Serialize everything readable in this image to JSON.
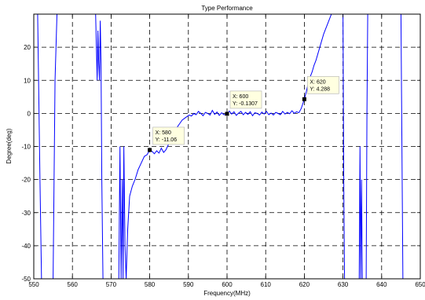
{
  "chart_data": {
    "type": "line",
    "title": "Type Performance",
    "xlabel": "Frequency(MHz)",
    "ylabel": "Degree(deg)",
    "xlim": [
      550,
      650
    ],
    "ylim": [
      -50,
      30
    ],
    "xticks": [
      550,
      560,
      570,
      580,
      590,
      600,
      610,
      620,
      630,
      640,
      650
    ],
    "yticks": [
      -50,
      -40,
      -30,
      -20,
      -10,
      0,
      10,
      20
    ],
    "xtick_labels": [
      "550",
      "560",
      "570",
      "580",
      "590",
      "600",
      "610",
      "620",
      "630",
      "640",
      "650"
    ],
    "ytick_labels": [
      "-50",
      "-40",
      "-30",
      "-20",
      "-10",
      "0",
      "10",
      "20"
    ],
    "grid": "dashed",
    "series": [
      {
        "color": "#0000ff",
        "x": [
          551.0,
          551.3,
          551.6,
          552.0,
          555.0,
          555.5,
          556.0,
          566.0,
          566.2,
          566.4,
          566.6,
          566.8,
          567.0,
          567.2,
          567.4,
          567.6,
          567.9,
          568.4,
          571.0,
          572.0,
          572.3,
          572.6,
          572.9,
          573.1,
          573.3,
          573.6,
          573.9,
          574.3,
          574.8,
          575.5,
          576.2,
          577.0,
          577.8,
          578.6,
          579.3,
          580.0,
          580.6,
          581.2,
          581.8,
          582.4,
          583.0,
          583.6,
          584.2,
          584.8,
          585.4,
          586.0,
          586.6,
          587.2,
          587.8,
          588.4,
          589.0,
          589.6,
          590.2,
          590.8,
          591.4,
          592.0,
          592.6,
          593.2,
          593.8,
          594.4,
          595.0,
          595.6,
          596.2,
          596.8,
          597.4,
          598.0,
          598.6,
          599.2,
          600.0,
          600.6,
          601.2,
          601.8,
          602.4,
          603.0,
          603.6,
          604.2,
          604.8,
          605.4,
          606.0,
          606.6,
          607.2,
          607.8,
          608.4,
          609.0,
          609.6,
          610.2,
          610.8,
          611.4,
          612.0,
          612.6,
          613.2,
          613.8,
          614.4,
          615.0,
          615.6,
          616.2,
          616.8,
          617.4,
          618.0,
          618.6,
          619.2,
          620.0,
          620.5,
          621.0,
          621.5,
          622.0,
          622.5,
          623.0,
          623.5,
          624.0,
          624.5,
          625.0,
          625.5,
          626.0,
          626.5,
          627.0,
          627.5,
          628.0,
          628.5,
          629.0,
          629.5,
          630.0,
          630.2,
          630.4,
          630.6,
          634.0,
          634.2,
          634.4,
          634.6,
          634.8,
          635.0,
          636.0,
          636.2,
          636.4,
          636.6,
          645.0,
          645.5,
          646.0
        ],
        "y": [
          30,
          5,
          -20,
          -50,
          -50,
          10,
          30,
          30,
          20,
          10,
          25,
          15,
          10,
          28,
          15,
          -20,
          -50,
          -51,
          -51,
          -50,
          -10,
          -50,
          -20,
          -50,
          -10,
          -40,
          -50,
          -35,
          -25,
          -22,
          -20,
          -17,
          -15,
          -13,
          -12.5,
          -11.06,
          -11.5,
          -12.2,
          -11.3,
          -12.0,
          -10.5,
          -11.8,
          -11.0,
          -9.5,
          -8.5,
          -7.0,
          -6.0,
          -4.0,
          -3.0,
          -2.0,
          -1.5,
          -1.0,
          -0.5,
          -0.8,
          0.0,
          -0.4,
          0.6,
          0.0,
          -0.7,
          0.3,
          0.0,
          -0.5,
          0.9,
          -0.3,
          0.4,
          -0.6,
          0.2,
          -0.4,
          -0.1307,
          0.7,
          -0.2,
          0.5,
          -0.6,
          0.1,
          0.6,
          -0.4,
          0.3,
          -0.3,
          0.5,
          -0.7,
          0.2,
          0.0,
          -0.5,
          0.4,
          -0.2,
          0.6,
          -0.4,
          0.1,
          -0.5,
          0.3,
          0.0,
          -0.4,
          0.6,
          -0.2,
          0.3,
          -0.1,
          0.8,
          0.0,
          0.5,
          0.2,
          1.5,
          4.288,
          6.5,
          9.0,
          11.0,
          12.5,
          14.5,
          16.0,
          18.0,
          20.0,
          22.0,
          24.0,
          25.5,
          27.0,
          28.5,
          30.0,
          30.0,
          30.0,
          30.0,
          30.0,
          30.0,
          30.0,
          -20.0,
          -50.0,
          -51.0,
          -51.0,
          -50.0,
          -10.0,
          -50.0,
          -20.0,
          -50.0,
          -50.0,
          0.0,
          30.0,
          30.0,
          30.0,
          -50.0,
          -51.0
        ]
      }
    ],
    "annotations": [
      {
        "x": 580,
        "y": -11.06,
        "line1": "X: 580",
        "line2": "Y: -11.06"
      },
      {
        "x": 600,
        "y": -0.1307,
        "line1": "X: 600",
        "line2": "Y: -0.1307"
      },
      {
        "x": 620,
        "y": 4.288,
        "line1": "X: 620",
        "line2": "Y: 4.288"
      }
    ]
  }
}
